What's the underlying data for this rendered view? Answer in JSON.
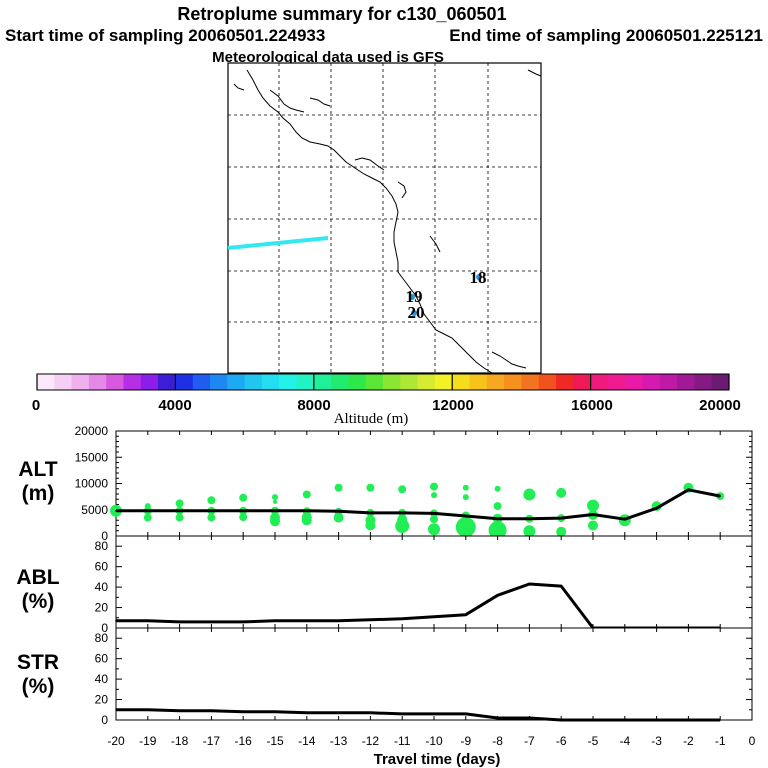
{
  "header": {
    "title": "Retroplume summary for c130_060501",
    "start_time": "Start time of sampling 20060501.224933",
    "end_time": "End time of sampling 20060501.225121",
    "met_data": "Meteorological data used is GFS"
  },
  "map": {
    "day_labels": [
      "18",
      "19",
      "20"
    ],
    "plume_color": "#33e8ee",
    "marker_color": "#2299dd"
  },
  "colorbar": {
    "ticks": [
      "0",
      "4000",
      "8000",
      "12000",
      "16000",
      "20000"
    ],
    "label": "Altitude (m)",
    "colors": [
      "#fbe8fb",
      "#f6cff6",
      "#eeb0ee",
      "#e48ae6",
      "#d659e0",
      "#b62ee6",
      "#8b1ee8",
      "#3c1fd4",
      "#1e2fe6",
      "#1f5cf0",
      "#1e88f2",
      "#1eaaf2",
      "#21c6f0",
      "#22def0",
      "#22f2e8",
      "#23f3c4",
      "#21ef9a",
      "#22ec70",
      "#2ee84a",
      "#5ae637",
      "#8ae632",
      "#b0e636",
      "#d6ec32",
      "#f2f226",
      "#f5dd1e",
      "#f6c31c",
      "#f6a91e",
      "#f6901e",
      "#f2741f",
      "#f0521e",
      "#ef2a26",
      "#ee1a55",
      "#ee1a7c",
      "#ef1b93",
      "#e81aa6",
      "#d61ab0",
      "#bd1aa6",
      "#a11a95",
      "#841a82",
      "#6b1a72"
    ]
  },
  "alt_markers": [
    {
      "d": -20,
      "v": 4800,
      "s": 6
    },
    {
      "d": -19,
      "v": 4800,
      "s": 4
    },
    {
      "d": -19,
      "v": 3500,
      "s": 4
    },
    {
      "d": -19,
      "v": 5700,
      "s": 3
    },
    {
      "d": -18,
      "v": 6200,
      "s": 4
    },
    {
      "d": -18,
      "v": 4800,
      "s": 4
    },
    {
      "d": -18,
      "v": 3500,
      "s": 4
    },
    {
      "d": -17,
      "v": 6800,
      "s": 4
    },
    {
      "d": -17,
      "v": 4800,
      "s": 4
    },
    {
      "d": -17,
      "v": 3500,
      "s": 4
    },
    {
      "d": -16,
      "v": 7300,
      "s": 4
    },
    {
      "d": -16,
      "v": 4800,
      "s": 4
    },
    {
      "d": -16,
      "v": 3600,
      "s": 4
    },
    {
      "d": -15,
      "v": 7400,
      "s": 3
    },
    {
      "d": -15,
      "v": 6500,
      "s": 2
    },
    {
      "d": -15,
      "v": 4800,
      "s": 4
    },
    {
      "d": -15,
      "v": 3500,
      "s": 5
    },
    {
      "d": -15,
      "v": 2800,
      "s": 5
    },
    {
      "d": -14,
      "v": 7900,
      "s": 4
    },
    {
      "d": -14,
      "v": 4700,
      "s": 4
    },
    {
      "d": -14,
      "v": 3600,
      "s": 5
    },
    {
      "d": -14,
      "v": 3000,
      "s": 5
    },
    {
      "d": -13,
      "v": 9200,
      "s": 4
    },
    {
      "d": -13,
      "v": 4600,
      "s": 4
    },
    {
      "d": -13,
      "v": 3500,
      "s": 5
    },
    {
      "d": -12,
      "v": 9200,
      "s": 4
    },
    {
      "d": -12,
      "v": 4400,
      "s": 4
    },
    {
      "d": -12,
      "v": 3000,
      "s": 5
    },
    {
      "d": -12,
      "v": 2000,
      "s": 5
    },
    {
      "d": -11,
      "v": 8900,
      "s": 4
    },
    {
      "d": -11,
      "v": 4400,
      "s": 4
    },
    {
      "d": -11,
      "v": 3100,
      "s": 5
    },
    {
      "d": -11,
      "v": 1900,
      "s": 7
    },
    {
      "d": -10,
      "v": 9400,
      "s": 4
    },
    {
      "d": -10,
      "v": 7800,
      "s": 3
    },
    {
      "d": -10,
      "v": 4300,
      "s": 4
    },
    {
      "d": -10,
      "v": 3200,
      "s": 4
    },
    {
      "d": -10,
      "v": 1300,
      "s": 6
    },
    {
      "d": -9,
      "v": 9200,
      "s": 3
    },
    {
      "d": -9,
      "v": 7400,
      "s": 3
    },
    {
      "d": -9,
      "v": 3900,
      "s": 4
    },
    {
      "d": -9,
      "v": 1700,
      "s": 10
    },
    {
      "d": -8,
      "v": 9000,
      "s": 3
    },
    {
      "d": -8,
      "v": 5700,
      "s": 4
    },
    {
      "d": -8,
      "v": 3300,
      "s": 5
    },
    {
      "d": -8,
      "v": 1100,
      "s": 9
    },
    {
      "d": -7,
      "v": 7900,
      "s": 6
    },
    {
      "d": -7,
      "v": 3300,
      "s": 4
    },
    {
      "d": -7,
      "v": 900,
      "s": 6
    },
    {
      "d": -6,
      "v": 8200,
      "s": 5
    },
    {
      "d": -6,
      "v": 3400,
      "s": 4
    },
    {
      "d": -6,
      "v": 800,
      "s": 5
    },
    {
      "d": -5,
      "v": 5800,
      "s": 6
    },
    {
      "d": -5,
      "v": 4000,
      "s": 5
    },
    {
      "d": -5,
      "v": 2000,
      "s": 5
    },
    {
      "d": -4,
      "v": 3000,
      "s": 6
    },
    {
      "d": -3,
      "v": 5700,
      "s": 5
    },
    {
      "d": -2,
      "v": 9200,
      "s": 5
    },
    {
      "d": -1,
      "v": 7600,
      "s": 4
    }
  ],
  "chart_data": [
    {
      "type": "line",
      "panel": "ALT",
      "ylabel": [
        "ALT",
        "(m)"
      ],
      "ylim": [
        0,
        20000
      ],
      "yticks": [
        "0",
        "5000",
        "10000",
        "15000",
        "20000"
      ],
      "x": [
        -20,
        -19,
        -18,
        -17,
        -16,
        -15,
        -14,
        -13,
        -12,
        -11,
        -10,
        -9,
        -8,
        -7,
        -6,
        -5,
        -4,
        -3,
        -2,
        -1
      ],
      "values": [
        4800,
        4800,
        4800,
        4800,
        4800,
        4800,
        4800,
        4700,
        4400,
        4400,
        4300,
        3800,
        3300,
        3300,
        3400,
        4100,
        3200,
        5300,
        8800,
        7600
      ]
    },
    {
      "type": "line",
      "panel": "ABL",
      "ylabel": [
        "ABL",
        "(%)"
      ],
      "ylim": [
        0,
        90
      ],
      "yticks": [
        "0",
        "20",
        "40",
        "60",
        "80"
      ],
      "x": [
        -20,
        -19,
        -18,
        -17,
        -16,
        -15,
        -14,
        -13,
        -12,
        -11,
        -10,
        -9,
        -8,
        -7,
        -6,
        -5,
        -4,
        -3,
        -2,
        -1
      ],
      "values": [
        7,
        7,
        6,
        6,
        6,
        7,
        7,
        7,
        8,
        9,
        11,
        13,
        32,
        43,
        41,
        0,
        0,
        0,
        0,
        0
      ]
    },
    {
      "type": "line",
      "panel": "STR",
      "ylabel": [
        "STR",
        "(%)"
      ],
      "ylim": [
        0,
        90
      ],
      "yticks": [
        "0",
        "20",
        "40",
        "60",
        "80"
      ],
      "x": [
        -20,
        -19,
        -18,
        -17,
        -16,
        -15,
        -14,
        -13,
        -12,
        -11,
        -10,
        -9,
        -8,
        -7,
        -6,
        -5,
        -4,
        -3,
        -2,
        -1
      ],
      "values": [
        10,
        10,
        9,
        9,
        8,
        8,
        7,
        7,
        7,
        6,
        6,
        6,
        2,
        2,
        0,
        0,
        0,
        0,
        0,
        0
      ],
      "xlabel": "Travel time (days)",
      "xticks": [
        "-20",
        "-19",
        "-18",
        "-17",
        "-16",
        "-15",
        "-14",
        "-13",
        "-12",
        "-11",
        "-10",
        "-9",
        "-8",
        "-7",
        "-6",
        "-5",
        "-4",
        "-3",
        "-2",
        "-1",
        "0"
      ]
    }
  ]
}
